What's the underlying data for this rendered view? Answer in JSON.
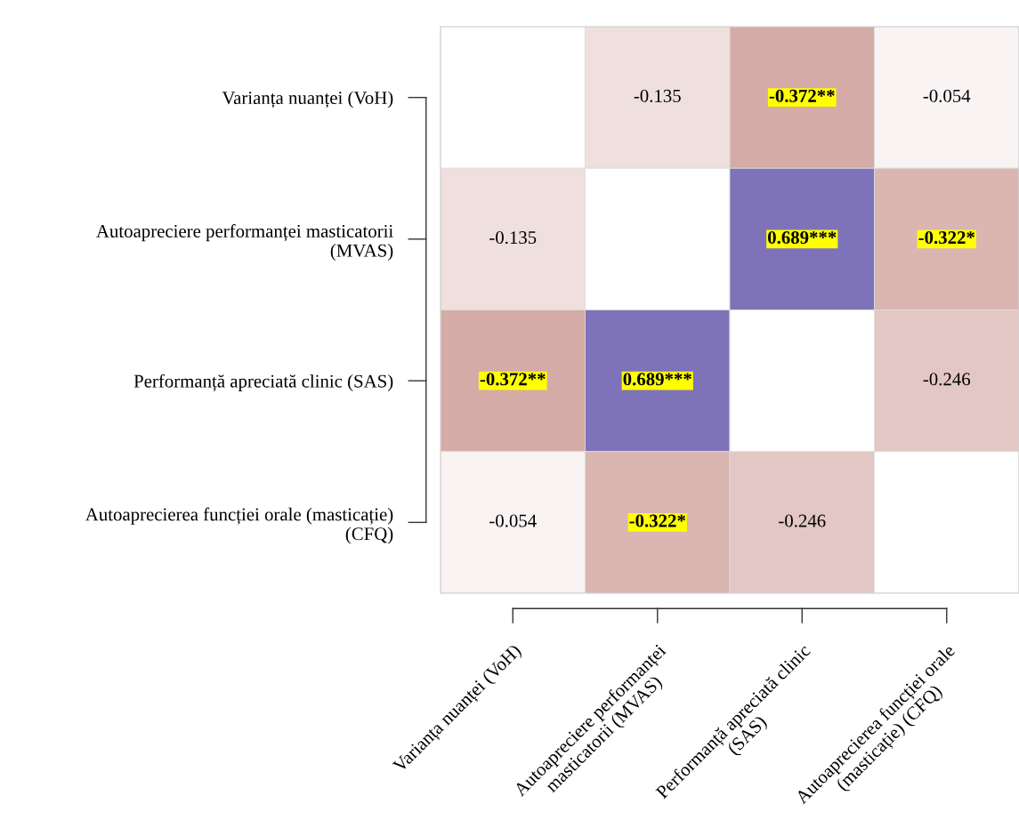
{
  "chart_data": {
    "type": "heatmap",
    "categories": [
      "Varianța nuanței (VoH)",
      "Autoapreciere performanței\nmasticatorii (MVAS)",
      "Performanță apreciată clinic\n(SAS)",
      "Autoaprecierea funcției orale\n(masticație) (CFQ)"
    ],
    "y_categories": [
      "Varianța nuanței (VoH)",
      "Autoapreciere performanței masticatorii\n(MVAS)",
      "Performanță apreciată clinic (SAS)",
      "Autoaprecierea funcției orale (masticație)\n(CFQ)"
    ],
    "cells": [
      [
        null,
        -0.135,
        -0.372,
        -0.054
      ],
      [
        -0.135,
        null,
        0.689,
        -0.322
      ],
      [
        -0.372,
        0.689,
        null,
        -0.246
      ],
      [
        -0.054,
        -0.322,
        -0.246,
        null
      ]
    ],
    "cell_labels": [
      [
        null,
        "-0.135",
        "-0.372**",
        "-0.054"
      ],
      [
        "-0.135",
        null,
        "0.689***",
        "-0.322*"
      ],
      [
        "-0.372**",
        "0.689***",
        null,
        "-0.246"
      ],
      [
        "-0.054",
        "-0.322*",
        "-0.246",
        null
      ]
    ]
  }
}
